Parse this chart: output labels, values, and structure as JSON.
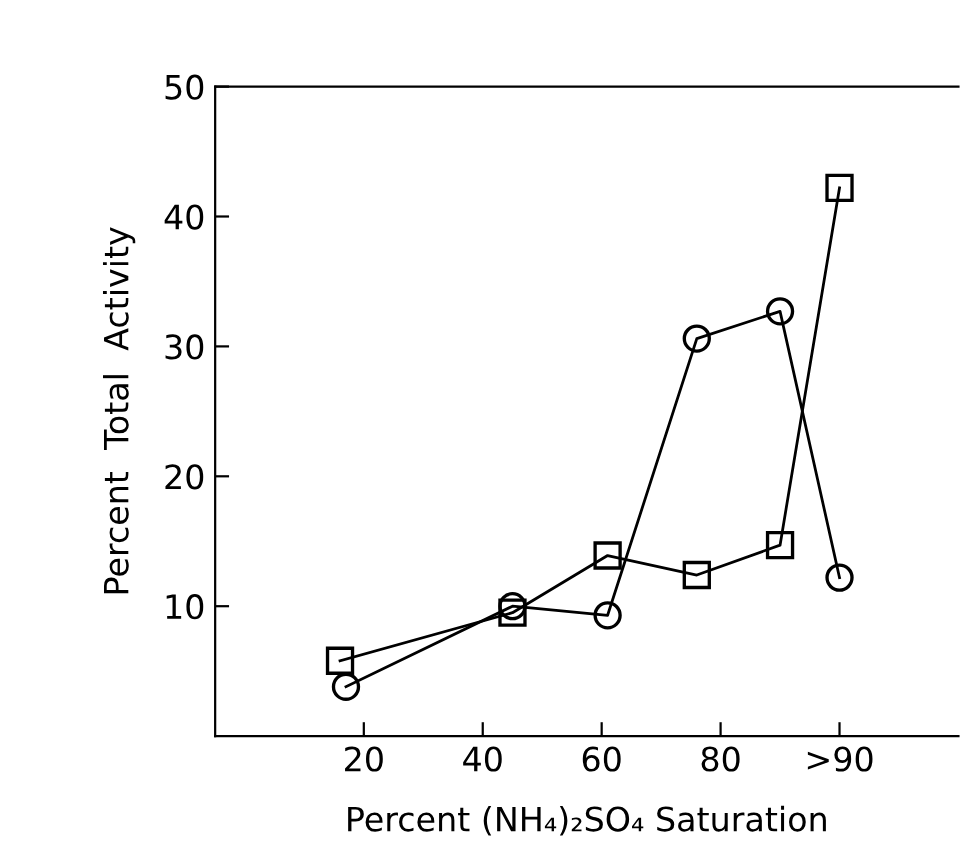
{
  "chart_data": {
    "type": "line",
    "xlabel": "Percent (NH₄)₂SO₄ Saturation",
    "ylabel": "Percent  Total  Activity",
    "xlim": [
      -5,
      120
    ],
    "xticks": [
      20,
      40,
      60,
      80,
      {
        "value": 100,
        "label": ">90"
      }
    ],
    "ylim": [
      0,
      50
    ],
    "yticks": [
      10,
      20,
      30,
      40,
      50
    ],
    "grid": false,
    "legend": false,
    "series": [
      {
        "color": "#000000",
        "marker": "square",
        "x": [
          16,
          45,
          61,
          76,
          90,
          100
        ],
        "values": [
          5.8,
          9.5,
          13.9,
          12.4,
          14.7,
          42.2
        ]
      },
      {
        "color": "#000000",
        "marker": "circle",
        "x": [
          17,
          45,
          61,
          76,
          90,
          100
        ],
        "values": [
          3.8,
          10.0,
          9.3,
          30.6,
          32.7,
          12.2
        ]
      }
    ]
  }
}
